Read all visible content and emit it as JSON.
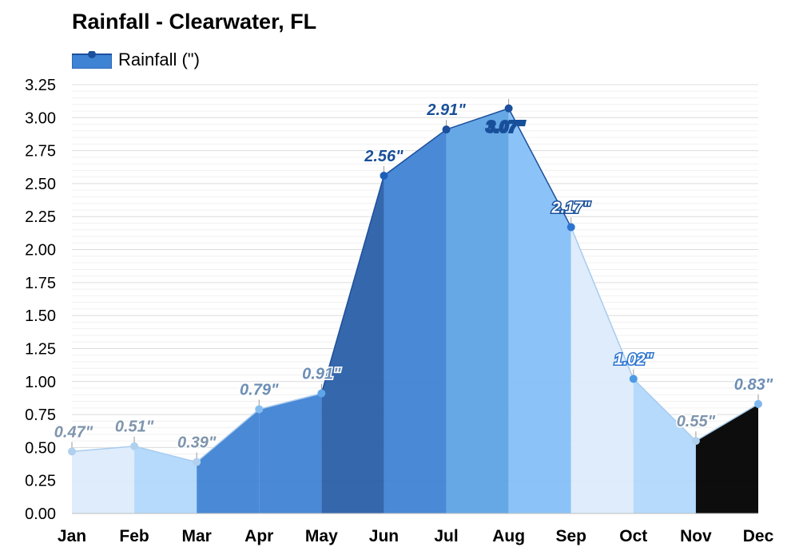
{
  "chart_data": {
    "type": "area",
    "title": "Rainfall - Clearwater, FL",
    "categories": [
      "Jan",
      "Feb",
      "Mar",
      "Apr",
      "May",
      "Jun",
      "Jul",
      "Aug",
      "Sep",
      "Oct",
      "Nov",
      "Dec"
    ],
    "series": [
      {
        "name": "Rainfall (\")",
        "values": [
          0.47,
          0.51,
          0.39,
          0.79,
          0.91,
          2.56,
          2.91,
          3.07,
          2.17,
          1.02,
          0.55,
          0.83
        ],
        "labels": [
          "0.47\"",
          "0.51\"",
          "0.39\"",
          "0.79\"",
          "0.91\"",
          "2.56\"",
          "2.91\"",
          "3.07\"",
          "2.17\"",
          "1.02\"",
          "0.55\"",
          "0.83\""
        ]
      }
    ],
    "ylim": [
      0,
      3.25
    ],
    "yticks": [
      "0.00",
      "0.25",
      "0.50",
      "0.75",
      "1.00",
      "1.25",
      "1.50",
      "1.75",
      "2.00",
      "2.25",
      "2.50",
      "2.75",
      "3.00",
      "3.25"
    ],
    "grid": true,
    "legend_position": "top-left",
    "colors": {
      "fills": [
        "#dcebfb",
        "#dcebfb",
        "#dcebfb",
        "#b1d8fb",
        "#3f83d4",
        "#3f83d4",
        "#3f83d4",
        "#3f83d4",
        "#85c0f8",
        "#b1d8fb",
        "#dcebfb",
        "#b1d8fb"
      ],
      "dots": [
        "#b0d0ee",
        "#b0d0ee",
        "#b0d0ee",
        "#85bdf0",
        "#5da5e8",
        "#1c5fb9",
        "#1c4f9c",
        "#1c4f9c",
        "#2c74cf",
        "#4c9be6",
        "#b0d0ee",
        "#7fb8ee"
      ],
      "labels": [
        "#7f95ad",
        "#7f95ad",
        "#7f95ad",
        "#6d8fb5",
        "#6d8fb5",
        "#184f9a",
        "#184f9a",
        "#184f9a",
        "#ffffff",
        "#ffffff",
        "#7f95ad",
        "#6d8fb5"
      ],
      "label_outline": [
        "#ffffff",
        "#ffffff",
        "#ffffff",
        "#ffffff",
        "#ffffff",
        "#ffffff",
        "#ffffff",
        "#184f9a",
        "#184f9a",
        "#2c74cf",
        "#ffffff",
        "#ffffff"
      ],
      "bands": [
        "#dcebfb",
        "#b1d8fb",
        "#3f83d4",
        "#3f83d4",
        "#2a5fa8",
        "#3f83d4",
        "#5ea3e4",
        "#85c0f8",
        "#dcebfb",
        "#b1d8fb"
      ],
      "line_light": "#a9ccee",
      "line_dark": "#1c4f9c",
      "grid": "#e6e6e6"
    }
  }
}
